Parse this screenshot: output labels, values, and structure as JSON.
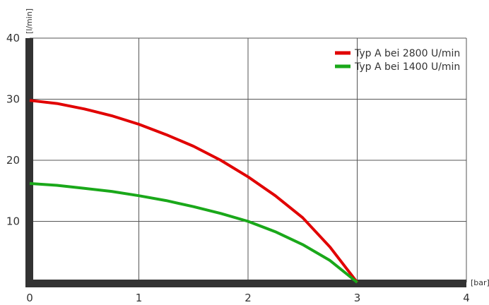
{
  "chart_data": {
    "type": "line",
    "title": "",
    "xlabel": "[bar]",
    "ylabel": "[l/min]",
    "xlim": [
      0,
      4
    ],
    "ylim": [
      0,
      40
    ],
    "x_ticks": [
      "0",
      "1",
      "2",
      "3",
      "4"
    ],
    "y_ticks": [
      "10",
      "20",
      "30",
      "40"
    ],
    "grid": true,
    "legend_position": "top-right",
    "series": [
      {
        "name": "Typ A bei 2800 U/min",
        "color": "#e10000",
        "x": [
          0,
          0.25,
          0.5,
          0.75,
          1,
          1.25,
          1.5,
          1.75,
          2,
          2.25,
          2.5,
          2.75,
          3
        ],
        "y": [
          29.8,
          29.3,
          28.4,
          27.3,
          25.9,
          24.2,
          22.3,
          20.0,
          17.3,
          14.2,
          10.6,
          5.8,
          0
        ]
      },
      {
        "name": "Typ A bei 1400 U/min",
        "color": "#1aa81a",
        "x": [
          0,
          0.25,
          0.5,
          0.75,
          1,
          1.25,
          1.5,
          1.75,
          2,
          2.25,
          2.5,
          2.75,
          3
        ],
        "y": [
          16.2,
          15.9,
          15.4,
          14.9,
          14.2,
          13.4,
          12.4,
          11.3,
          10.0,
          8.3,
          6.2,
          3.6,
          0
        ]
      }
    ]
  }
}
